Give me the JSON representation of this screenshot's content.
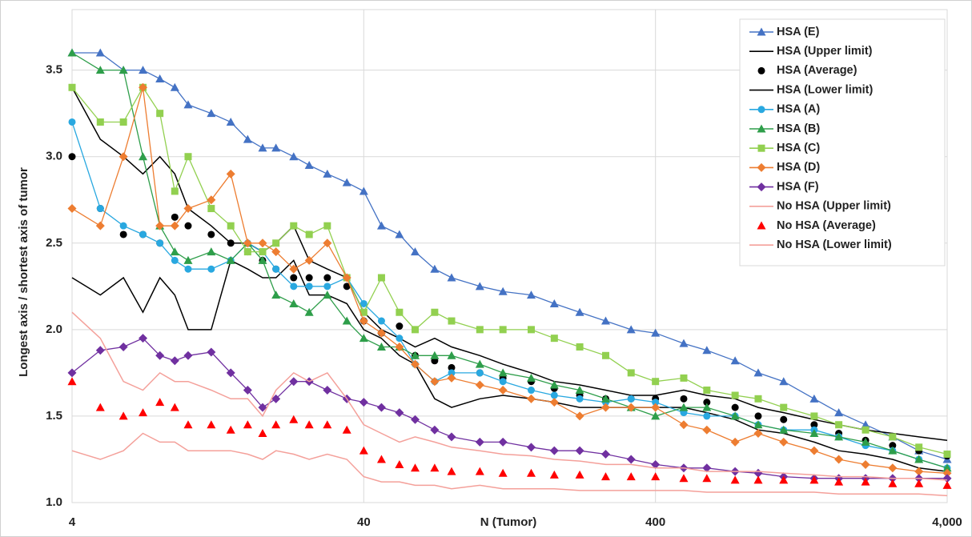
{
  "chart_data": {
    "type": "line",
    "x_scale": "log",
    "grid": true,
    "x_label": "N (Tumor)",
    "y_label": "Longest axis / shortest axis of tumor",
    "xlim": [
      4,
      4000
    ],
    "xticks": [
      4,
      40,
      400,
      {
        "value": 4000,
        "label": "4,000"
      }
    ],
    "ylim": [
      1,
      3.85
    ],
    "yticks": [
      {
        "value": 1,
        "label": "1.0"
      },
      1.5,
      {
        "value": 2,
        "label": "2.0"
      },
      2.5,
      {
        "value": 3,
        "label": "3.0"
      },
      3.5
    ],
    "x": [
      4,
      5,
      6,
      7,
      8,
      9,
      10,
      12,
      14,
      16,
      18,
      20,
      23,
      26,
      30,
      35,
      40,
      46,
      53,
      60,
      70,
      80,
      100,
      120,
      150,
      180,
      220,
      270,
      330,
      400,
      500,
      600,
      750,
      900,
      1100,
      1400,
      1700,
      2100,
      2600,
      3200,
      4000
    ],
    "series": [
      {
        "name": "HSA (E)",
        "color": "#4472c4",
        "marker": "triangle",
        "line": true,
        "values": [
          3.6,
          3.6,
          3.5,
          3.5,
          3.45,
          3.4,
          3.3,
          3.25,
          3.2,
          3.1,
          3.05,
          3.05,
          3.0,
          2.95,
          2.9,
          2.85,
          2.8,
          2.6,
          2.55,
          2.45,
          2.35,
          2.3,
          2.25,
          2.22,
          2.2,
          2.15,
          2.1,
          2.05,
          2.0,
          1.98,
          1.92,
          1.88,
          1.82,
          1.75,
          1.7,
          1.6,
          1.52,
          1.45,
          1.38,
          1.3,
          1.25
        ]
      },
      {
        "name": "HSA (Upper limit)",
        "color": "#000000",
        "marker": "none",
        "line": true,
        "values": [
          3.4,
          3.1,
          3.0,
          2.9,
          3.0,
          2.9,
          2.7,
          2.6,
          2.5,
          2.5,
          2.45,
          2.5,
          2.6,
          2.4,
          2.35,
          2.3,
          2.1,
          2.0,
          1.95,
          1.9,
          1.95,
          1.9,
          1.85,
          1.8,
          1.75,
          1.7,
          1.68,
          1.65,
          1.62,
          1.62,
          1.65,
          1.62,
          1.6,
          1.55,
          1.52,
          1.48,
          1.45,
          1.42,
          1.4,
          1.38,
          1.36
        ]
      },
      {
        "name": "HSA (Average)",
        "color": "#000000",
        "marker": "circle",
        "line": false,
        "values": [
          3.0,
          2.7,
          2.55,
          2.55,
          2.5,
          2.65,
          2.6,
          2.55,
          2.5,
          2.45,
          2.4,
          2.35,
          2.3,
          2.3,
          2.3,
          2.25,
          2.05,
          1.98,
          2.02,
          1.85,
          1.82,
          1.78,
          1.75,
          1.72,
          1.7,
          1.66,
          1.62,
          1.6,
          1.6,
          1.6,
          1.6,
          1.58,
          1.55,
          1.5,
          1.48,
          1.45,
          1.4,
          1.36,
          1.33,
          1.3,
          1.27
        ]
      },
      {
        "name": "HSA (Lower limit)",
        "color": "#000000",
        "marker": "none",
        "line": true,
        "values": [
          2.3,
          2.2,
          2.3,
          2.1,
          2.3,
          2.2,
          2.0,
          2.0,
          2.4,
          2.35,
          2.3,
          2.3,
          2.4,
          2.2,
          2.2,
          2.15,
          2.0,
          1.95,
          1.85,
          1.8,
          1.6,
          1.55,
          1.6,
          1.62,
          1.6,
          1.58,
          1.55,
          1.55,
          1.55,
          1.55,
          1.55,
          1.52,
          1.48,
          1.42,
          1.4,
          1.35,
          1.3,
          1.28,
          1.25,
          1.2,
          1.18
        ]
      },
      {
        "name": "HSA (A)",
        "color": "#29a8e0",
        "marker": "circle",
        "line": true,
        "values": [
          3.2,
          2.7,
          2.6,
          2.55,
          2.5,
          2.4,
          2.35,
          2.35,
          2.4,
          2.5,
          2.45,
          2.35,
          2.25,
          2.25,
          2.25,
          2.3,
          2.15,
          2.05,
          1.95,
          1.8,
          1.7,
          1.75,
          1.75,
          1.7,
          1.65,
          1.62,
          1.6,
          1.58,
          1.6,
          1.58,
          1.52,
          1.5,
          1.5,
          1.45,
          1.42,
          1.42,
          1.38,
          1.33,
          1.3,
          1.25,
          1.2
        ]
      },
      {
        "name": "HSA (B)",
        "color": "#2e9e4a",
        "marker": "triangle",
        "line": true,
        "values": [
          3.6,
          3.5,
          3.5,
          3.0,
          2.6,
          2.45,
          2.4,
          2.45,
          2.4,
          2.5,
          2.4,
          2.2,
          2.15,
          2.1,
          2.2,
          2.05,
          1.95,
          1.9,
          1.9,
          1.85,
          1.85,
          1.85,
          1.8,
          1.75,
          1.72,
          1.68,
          1.65,
          1.6,
          1.55,
          1.5,
          1.55,
          1.55,
          1.5,
          1.45,
          1.42,
          1.4,
          1.38,
          1.35,
          1.3,
          1.25,
          1.2
        ]
      },
      {
        "name": "HSA (C)",
        "color": "#92d050",
        "marker": "square",
        "line": true,
        "values": [
          3.4,
          3.2,
          3.2,
          3.4,
          3.25,
          2.8,
          3.0,
          2.7,
          2.6,
          2.45,
          2.45,
          2.5,
          2.6,
          2.55,
          2.6,
          2.3,
          2.1,
          2.3,
          2.1,
          2.0,
          2.1,
          2.05,
          2.0,
          2.0,
          2.0,
          1.95,
          1.9,
          1.85,
          1.75,
          1.7,
          1.72,
          1.65,
          1.62,
          1.6,
          1.55,
          1.5,
          1.45,
          1.42,
          1.38,
          1.32,
          1.28
        ]
      },
      {
        "name": "HSA (D)",
        "color": "#ed7d31",
        "marker": "diamond",
        "line": true,
        "values": [
          2.7,
          2.6,
          3.0,
          3.4,
          2.6,
          2.6,
          2.7,
          2.75,
          2.9,
          2.5,
          2.5,
          2.45,
          2.35,
          2.4,
          2.5,
          2.3,
          2.05,
          1.98,
          1.9,
          1.8,
          1.7,
          1.72,
          1.68,
          1.65,
          1.6,
          1.58,
          1.5,
          1.55,
          1.55,
          1.55,
          1.45,
          1.42,
          1.35,
          1.4,
          1.35,
          1.3,
          1.25,
          1.22,
          1.2,
          1.18,
          1.17
        ]
      },
      {
        "name": "HSA (F)",
        "color": "#7030a0",
        "marker": "diamond",
        "line": true,
        "values": [
          1.75,
          1.88,
          1.9,
          1.95,
          1.85,
          1.82,
          1.85,
          1.87,
          1.75,
          1.65,
          1.55,
          1.6,
          1.7,
          1.7,
          1.65,
          1.6,
          1.58,
          1.55,
          1.52,
          1.48,
          1.42,
          1.38,
          1.35,
          1.35,
          1.32,
          1.3,
          1.3,
          1.28,
          1.25,
          1.22,
          1.2,
          1.2,
          1.18,
          1.17,
          1.15,
          1.14,
          1.14,
          1.14,
          1.14,
          1.14,
          1.14
        ]
      },
      {
        "name": "No HSA (Upper limit)",
        "color": "#f4a09a",
        "marker": "none",
        "line": true,
        "values": [
          2.1,
          1.95,
          1.7,
          1.65,
          1.75,
          1.7,
          1.7,
          1.65,
          1.6,
          1.6,
          1.5,
          1.65,
          1.75,
          1.7,
          1.75,
          1.6,
          1.45,
          1.4,
          1.35,
          1.38,
          1.35,
          1.32,
          1.3,
          1.28,
          1.27,
          1.25,
          1.24,
          1.22,
          1.22,
          1.2,
          1.2,
          1.18,
          1.18,
          1.18,
          1.17,
          1.16,
          1.15,
          1.15,
          1.14,
          1.14,
          1.13
        ]
      },
      {
        "name": "No HSA (Average)",
        "color": "#ff0000",
        "marker": "triangle",
        "line": false,
        "values": [
          1.7,
          1.55,
          1.5,
          1.52,
          1.58,
          1.55,
          1.45,
          1.45,
          1.42,
          1.45,
          1.4,
          1.45,
          1.48,
          1.45,
          1.45,
          1.42,
          1.3,
          1.25,
          1.22,
          1.2,
          1.2,
          1.18,
          1.18,
          1.17,
          1.17,
          1.16,
          1.16,
          1.15,
          1.15,
          1.15,
          1.14,
          1.14,
          1.13,
          1.13,
          1.13,
          1.13,
          1.12,
          1.12,
          1.11,
          1.11,
          1.1
        ]
      },
      {
        "name": "No HSA (Lower limit)",
        "color": "#f4a09a",
        "marker": "none",
        "line": true,
        "values": [
          1.3,
          1.25,
          1.3,
          1.4,
          1.35,
          1.35,
          1.3,
          1.3,
          1.3,
          1.28,
          1.25,
          1.3,
          1.28,
          1.25,
          1.28,
          1.25,
          1.15,
          1.12,
          1.12,
          1.1,
          1.1,
          1.08,
          1.1,
          1.08,
          1.08,
          1.08,
          1.07,
          1.07,
          1.07,
          1.07,
          1.07,
          1.06,
          1.06,
          1.06,
          1.06,
          1.06,
          1.05,
          1.05,
          1.05,
          1.05,
          1.04
        ]
      }
    ]
  }
}
